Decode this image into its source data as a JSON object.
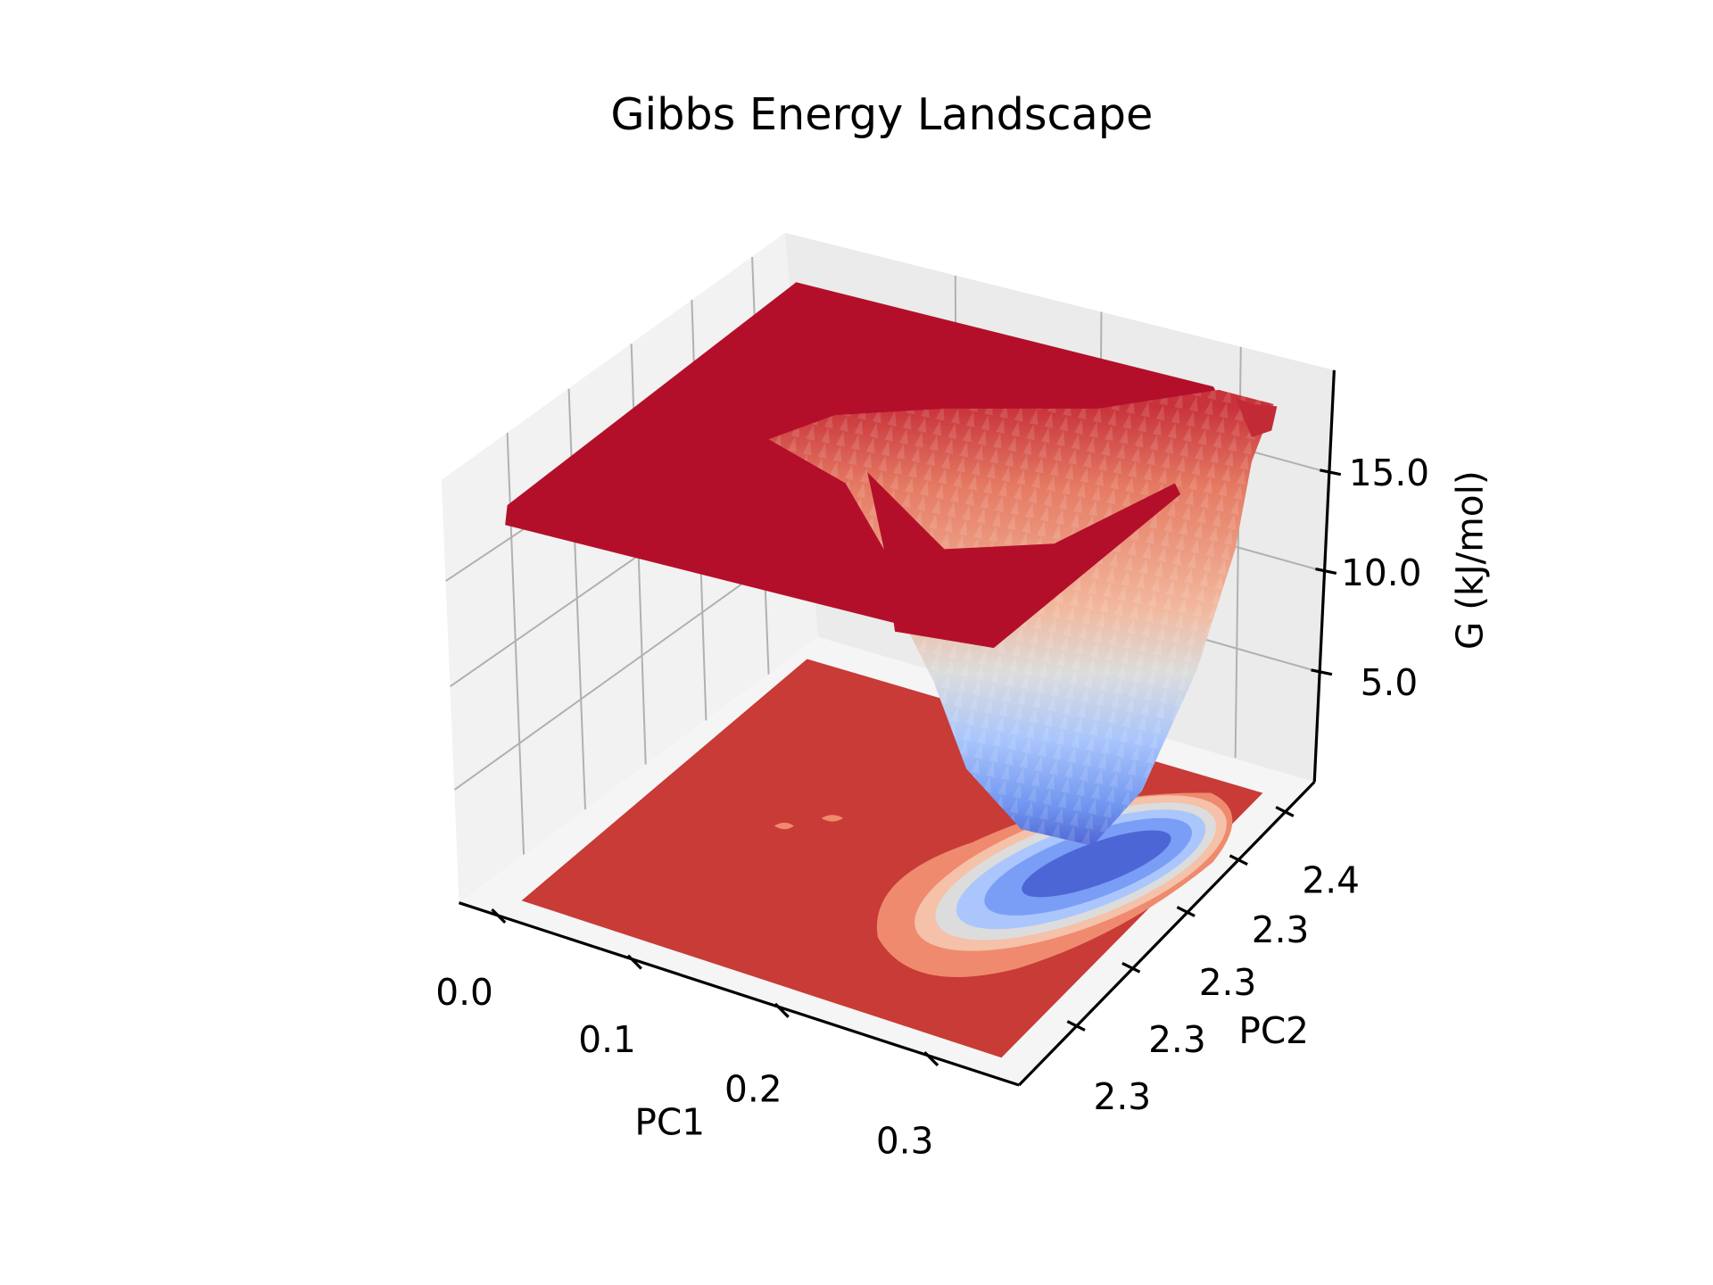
{
  "chart_data": {
    "type": "surface",
    "title": "Gibbs Energy Landscape",
    "xlabel": "PC1",
    "ylabel": "PC2",
    "zlabel": "G (kJ/mol)",
    "x_ticks": [
      "0.0",
      "0.1",
      "0.2",
      "0.3"
    ],
    "y_ticks": [
      "2.3",
      "2.3",
      "2.3",
      "2.3",
      "2.4"
    ],
    "z_ticks": [
      "15.0",
      "10.0",
      "5.0"
    ],
    "xlim": [
      0.0,
      0.35
    ],
    "ylim": [
      2.28,
      2.42
    ],
    "zlim": [
      0.5,
      18.5
    ],
    "colormap": "coolwarm",
    "plateau_value": 18.5,
    "minimum": {
      "PC1": 0.26,
      "PC2": 2.37,
      "G": 0.5
    },
    "floor_contour": true,
    "grid": true
  },
  "colors": {
    "plateau": "#b40f2a",
    "floor": "#c83b36",
    "low": "#4a63d3",
    "mid": "#dddcdc",
    "high": "#e8806a"
  }
}
